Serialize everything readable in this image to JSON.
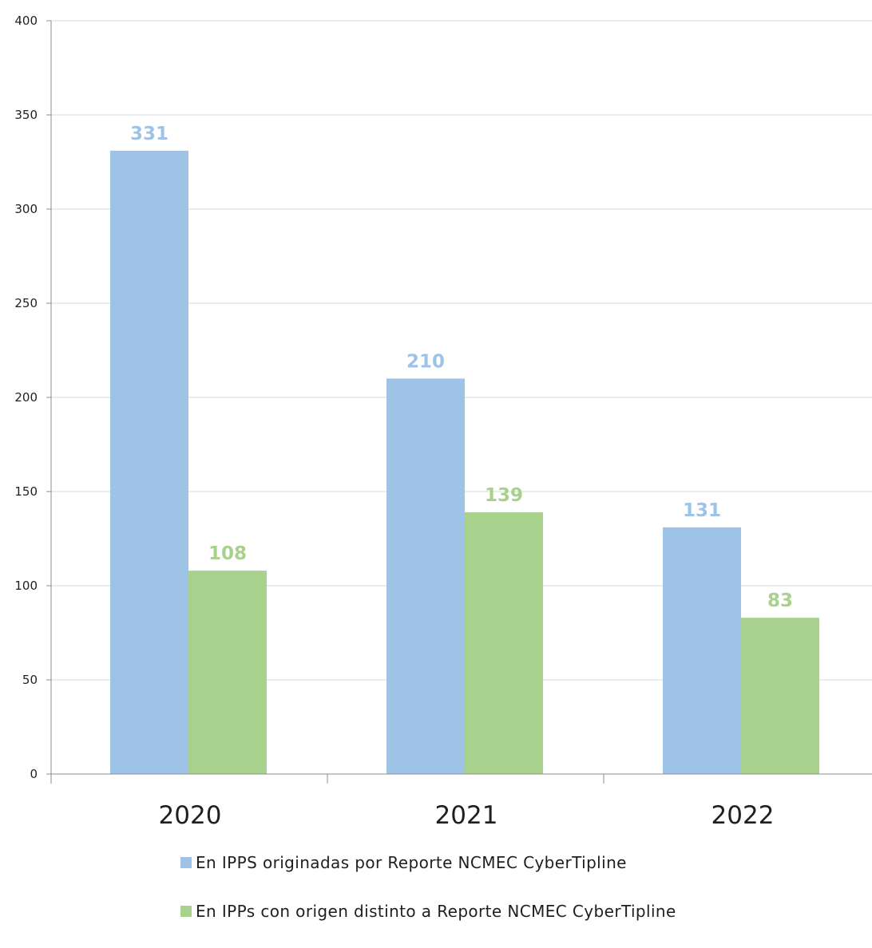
{
  "chart_data": {
    "type": "bar",
    "categories": [
      "2020",
      "2021",
      "2022"
    ],
    "series": [
      {
        "name": "En IPPS originadas por Reporte NCMEC CyberTipline",
        "values": [
          331,
          210,
          131
        ],
        "color": "#9fc3e6"
      },
      {
        "name": "En IPPs con origen distinto a Reporte NCMEC CyberTipline",
        "values": [
          108,
          139,
          83
        ],
        "color": "#a9d18e"
      }
    ],
    "ylim": [
      0,
      400
    ],
    "yticks": [
      0,
      50,
      100,
      150,
      200,
      250,
      300,
      350,
      400
    ],
    "title": "",
    "xlabel": "",
    "ylabel": "",
    "grid": true,
    "legend_position": "bottom",
    "data_labels": true
  }
}
